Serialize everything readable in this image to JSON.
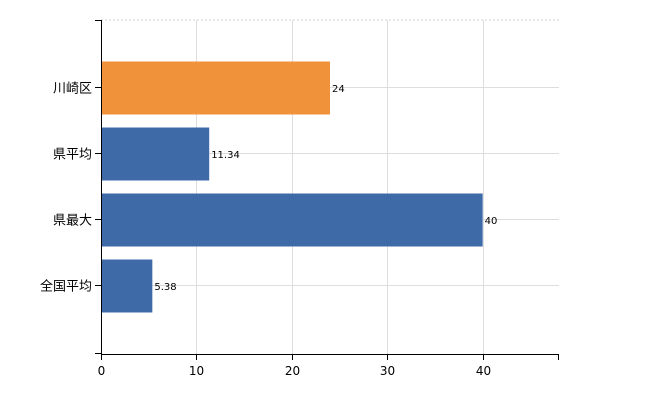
{
  "chart_data": {
    "type": "bar",
    "orientation": "horizontal",
    "categories": [
      "川崎区",
      "県平均",
      "県最大",
      "全国平均"
    ],
    "values": [
      24,
      11.34,
      40,
      5.38
    ],
    "value_labels": [
      "24",
      "11.34",
      "40",
      "5.38"
    ],
    "bar_colors": [
      "#F0923A",
      "#3E6BA8",
      "#3E6BA8",
      "#3E6BA8"
    ],
    "xlim": [
      0,
      48
    ],
    "x_ticks": [
      0,
      10,
      20,
      30,
      40
    ],
    "x_tick_labels": [
      "0",
      "10",
      "20",
      "30",
      "40"
    ],
    "grid": true,
    "title": "",
    "xlabel": "",
    "ylabel": ""
  }
}
